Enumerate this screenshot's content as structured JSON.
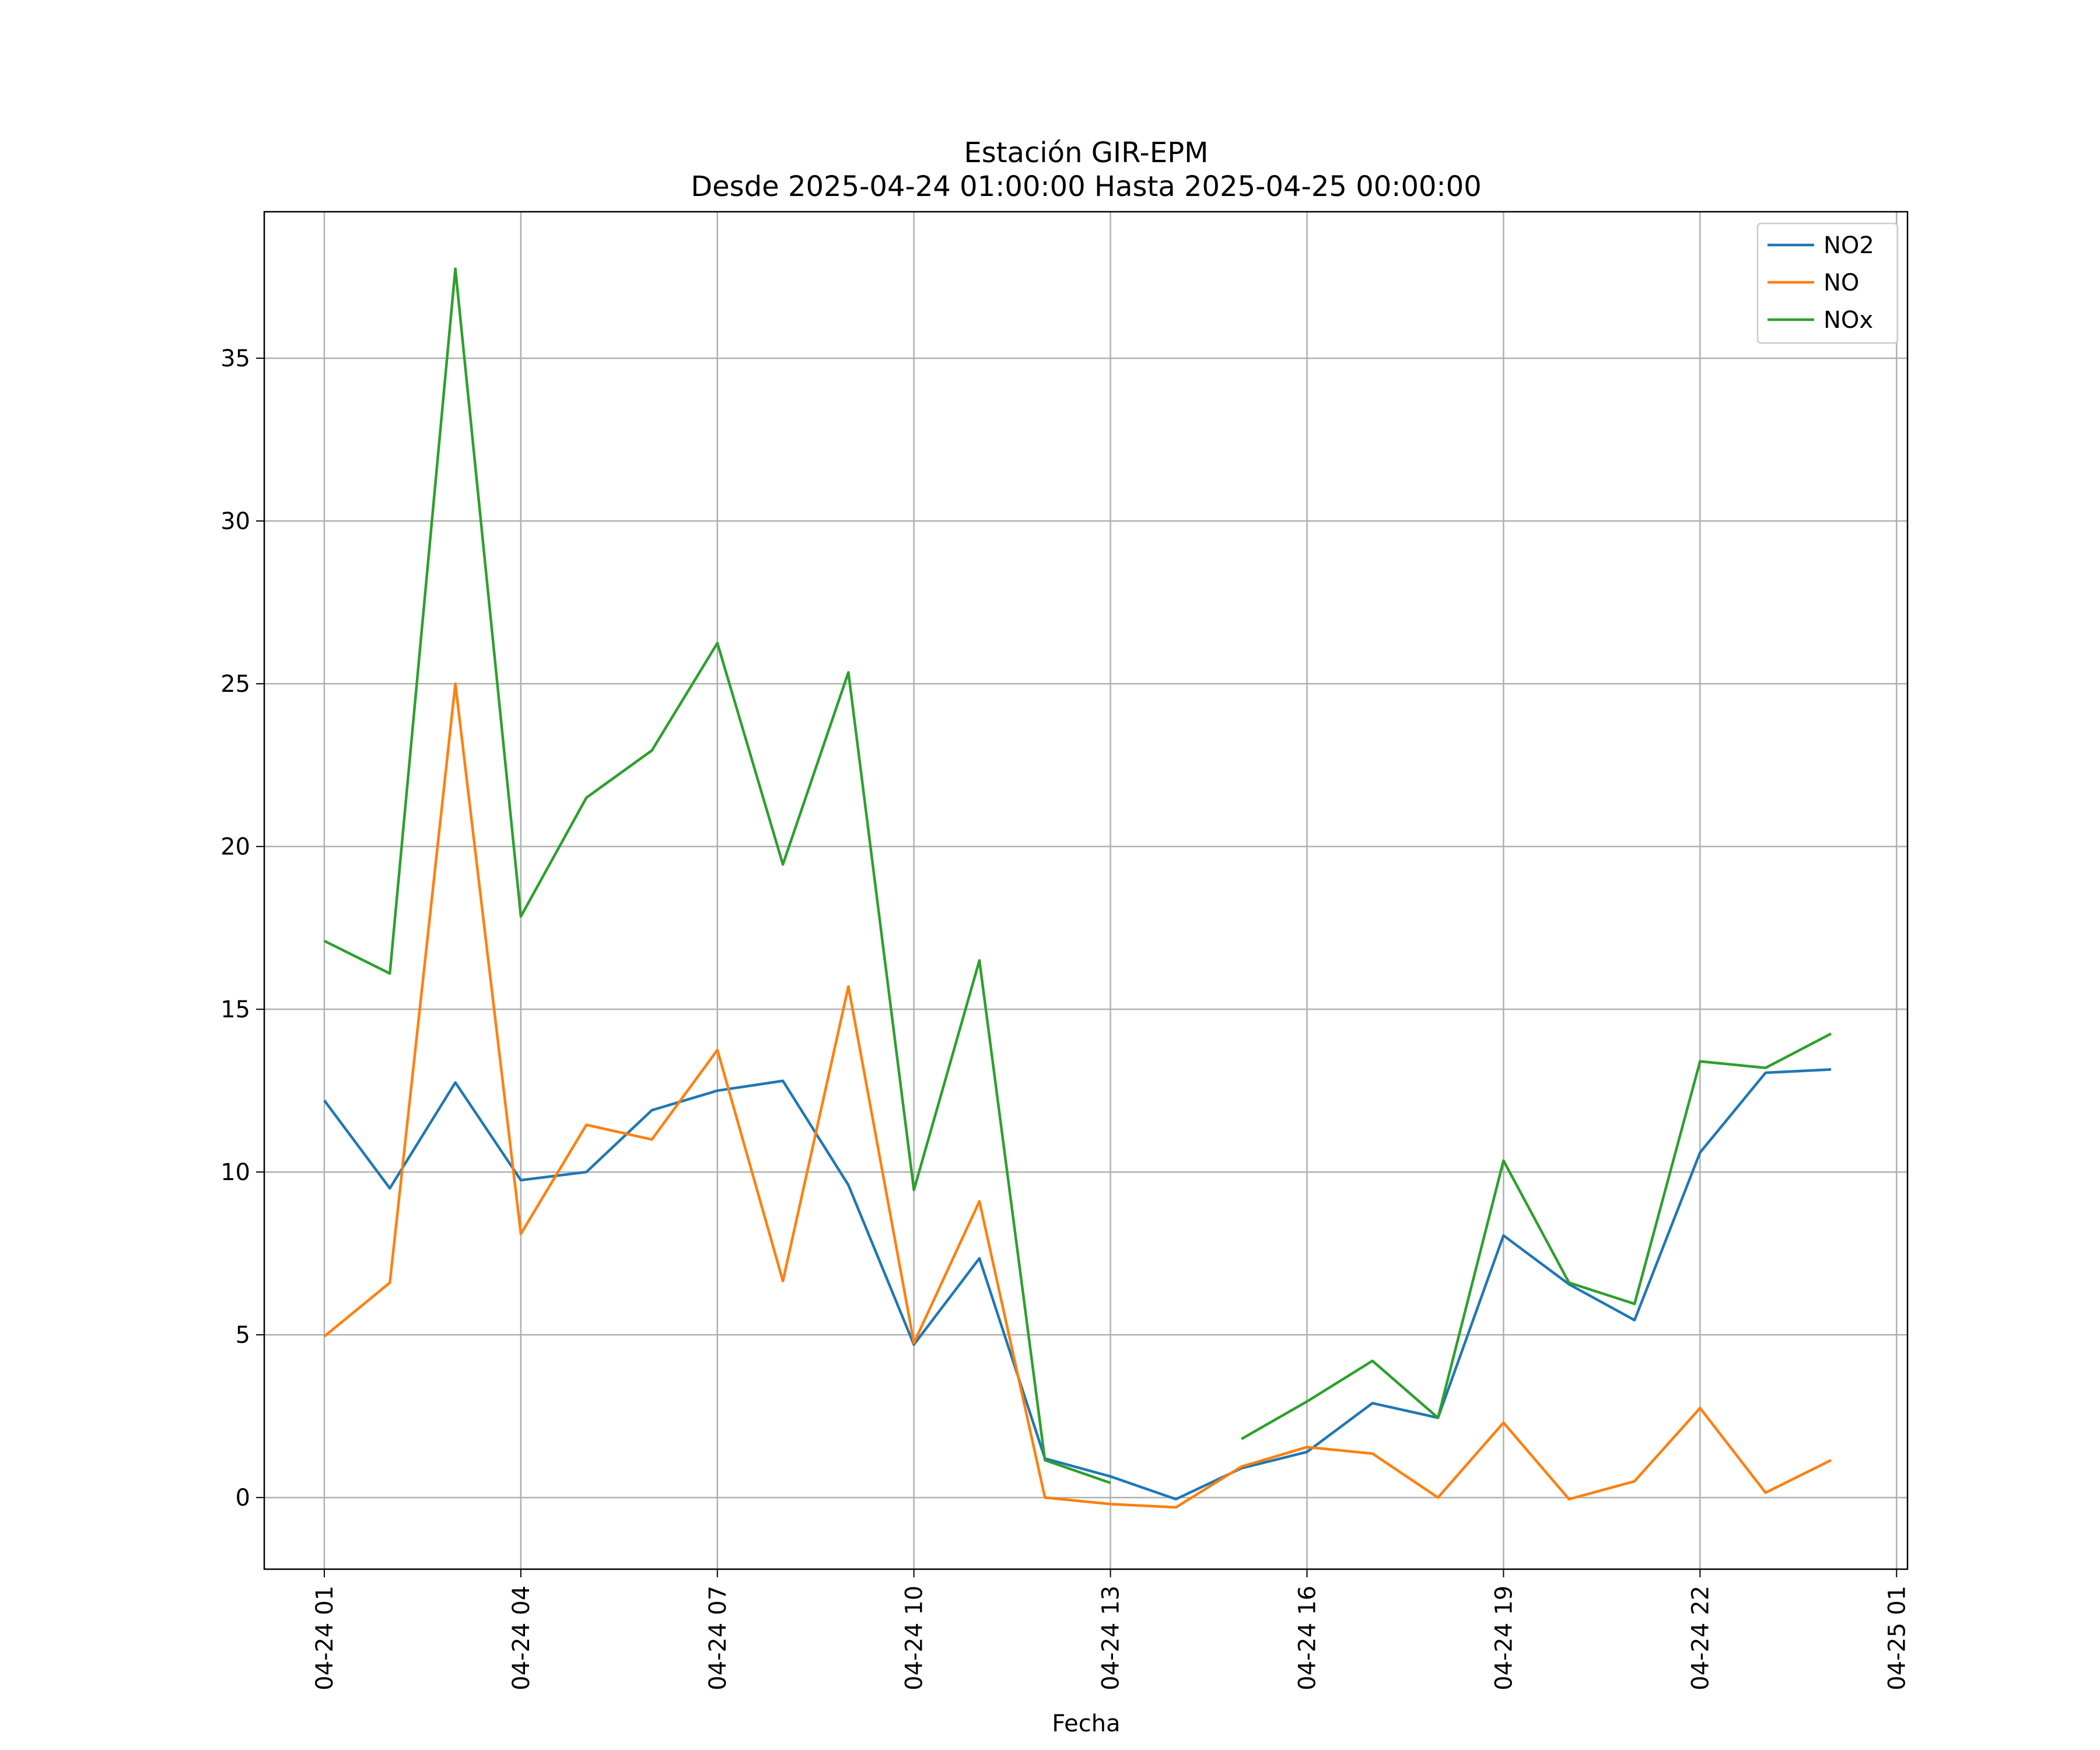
{
  "chart_data": {
    "type": "line",
    "title": "Estación GIR-EPM",
    "subtitle": "Desde 2025-04-24 01:00:00 Hasta 2025-04-25 00:00:00",
    "xlabel": "Fecha",
    "ylabel": "",
    "x": [
      "04-24 01",
      "04-24 02",
      "04-24 03",
      "04-24 04",
      "04-24 05",
      "04-24 06",
      "04-24 07",
      "04-24 08",
      "04-24 09",
      "04-24 10",
      "04-24 11",
      "04-24 12",
      "04-24 13",
      "04-24 14",
      "04-24 15",
      "04-24 16",
      "04-24 17",
      "04-24 18",
      "04-24 19",
      "04-24 20",
      "04-24 21",
      "04-24 22",
      "04-24 23",
      "04-25 00"
    ],
    "xlim": [
      "04-24 00:05",
      "04-25 01:10"
    ],
    "ylim": [
      -2.2,
      39.5
    ],
    "x_ticks": [
      "04-24 01",
      "04-24 04",
      "04-24 07",
      "04-24 10",
      "04-24 13",
      "04-24 16",
      "04-24 19",
      "04-24 22",
      "04-25 01"
    ],
    "y_ticks": [
      0,
      5,
      10,
      15,
      20,
      25,
      30,
      35
    ],
    "grid": true,
    "legend_position": "top-right",
    "series": [
      {
        "name": "NO2",
        "color": "#1f77b4",
        "values": [
          12.2,
          9.5,
          12.75,
          9.75,
          10.0,
          11.9,
          12.5,
          12.8,
          9.6,
          4.7,
          7.35,
          1.2,
          0.65,
          -0.05,
          0.9,
          1.4,
          2.9,
          2.45,
          8.05,
          6.55,
          5.45,
          10.6,
          13.05,
          13.15
        ]
      },
      {
        "name": "NO",
        "color": "#ff7f0e",
        "values": [
          4.95,
          6.6,
          25.0,
          8.1,
          11.45,
          11.0,
          13.75,
          6.65,
          15.7,
          4.75,
          9.1,
          0.0,
          -0.2,
          -0.3,
          0.95,
          1.55,
          1.35,
          0.0,
          2.3,
          -0.05,
          0.5,
          2.75,
          0.15,
          1.15
        ]
      },
      {
        "name": "NOx",
        "color": "#2ca02c",
        "values": [
          17.1,
          16.1,
          37.75,
          17.85,
          21.5,
          22.95,
          26.25,
          19.45,
          25.35,
          9.45,
          16.5,
          1.15,
          0.45,
          null,
          1.8,
          2.95,
          4.2,
          2.45,
          10.35,
          6.6,
          5.95,
          13.4,
          13.2,
          14.25
        ]
      }
    ]
  }
}
